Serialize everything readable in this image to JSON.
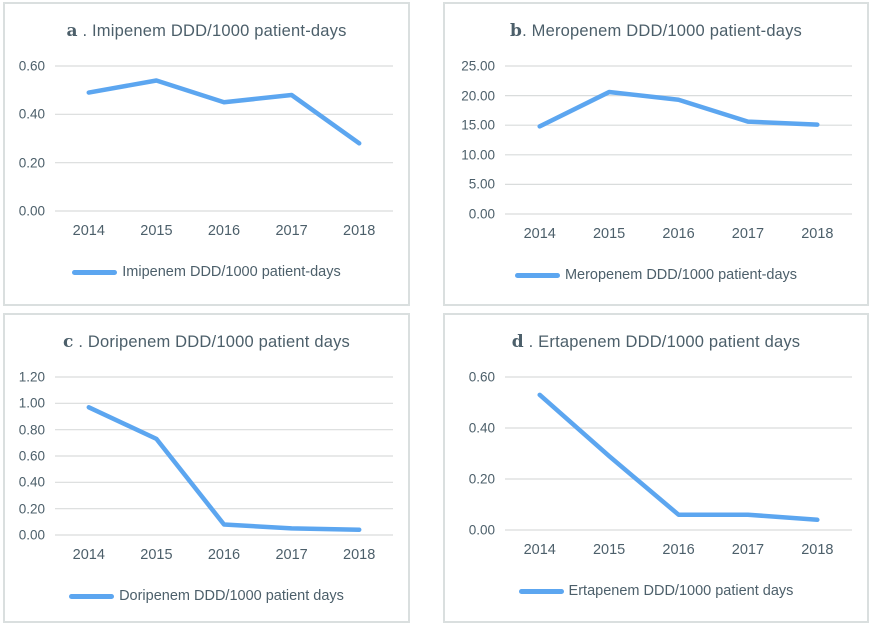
{
  "styles": {
    "line_color": "#5CA6F0",
    "grid_color": "#d9dcdc",
    "text_color": "#4c5f6a",
    "panel_border_color": "#dadfdf",
    "background": "#ffffff"
  },
  "chart_data": [
    {
      "type": "line",
      "panel": "a",
      "title_letter": "a",
      "title_rest": " . Imipenem DDD/1000 patient-days",
      "categories": [
        "2014",
        "2015",
        "2016",
        "2017",
        "2018"
      ],
      "series": [
        {
          "name": "Imipenem DDD/1000 patient-days",
          "values": [
            0.49,
            0.54,
            0.45,
            0.48,
            0.28
          ]
        }
      ],
      "y_ticks": [
        "0.60",
        "0.40",
        "0.20",
        "0.00"
      ],
      "ylim": [
        0,
        0.6
      ],
      "grid": "horizontal",
      "legend_position": "bottom"
    },
    {
      "type": "line",
      "panel": "b",
      "title_letter": "b",
      "title_rest": ". Meropenem DDD/1000 patient-days",
      "categories": [
        "2014",
        "2015",
        "2016",
        "2017",
        "2018"
      ],
      "series": [
        {
          "name": "Meropenem DDD/1000 patient-days",
          "values": [
            14.8,
            20.6,
            19.3,
            15.6,
            15.1
          ]
        }
      ],
      "y_ticks": [
        "25.00",
        "20.00",
        "15.00",
        "10.00",
        "5.00",
        "0.00"
      ],
      "ylim": [
        0,
        25
      ],
      "grid": "horizontal",
      "legend_position": "bottom"
    },
    {
      "type": "line",
      "panel": "c",
      "title_letter": "c",
      "title_rest": " . Doripenem DDD/1000 patient days",
      "categories": [
        "2014",
        "2015",
        "2016",
        "2017",
        "2018"
      ],
      "series": [
        {
          "name": "Doripenem DDD/1000 patient days",
          "values": [
            0.97,
            0.73,
            0.08,
            0.05,
            0.04
          ]
        }
      ],
      "y_ticks": [
        "1.20",
        "1.00",
        "0.80",
        "0.60",
        "0.40",
        "0.20",
        "0.00"
      ],
      "ylim": [
        0,
        1.2
      ],
      "grid": "horizontal",
      "legend_position": "bottom"
    },
    {
      "type": "line",
      "panel": "d",
      "title_letter": "d",
      "title_rest": " . Ertapenem DDD/1000 patient days",
      "categories": [
        "2014",
        "2015",
        "2016",
        "2017",
        "2018"
      ],
      "series": [
        {
          "name": "Ertapenem DDD/1000 patient days",
          "values": [
            0.53,
            0.29,
            0.06,
            0.06,
            0.04
          ]
        }
      ],
      "y_ticks": [
        "0.60",
        "0.40",
        "0.20",
        "0.00"
      ],
      "ylim": [
        0,
        0.6
      ],
      "grid": "horizontal",
      "legend_position": "bottom"
    }
  ]
}
